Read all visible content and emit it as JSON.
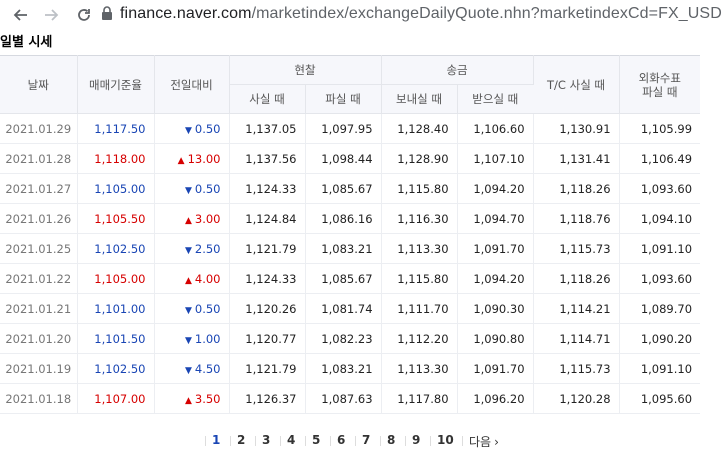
{
  "browser": {
    "url_host": "finance.naver.com",
    "url_path": "/marketindex/exchangeDailyQuote.nhn?marketindexCd=FX_USDKRW"
  },
  "section_title": "일별 시세",
  "table": {
    "headers": {
      "date": "날짜",
      "base_rate": "매매기준율",
      "change": "전일대비",
      "cash_group": "현찰",
      "cash_buy": "사실 때",
      "cash_sell": "파실 때",
      "remit_group": "송금",
      "remit_send": "보내실 때",
      "remit_receive": "받으실 때",
      "tc_buy": "T/C 사실 때",
      "check_sell_line1": "외화수표",
      "check_sell_line2": "파실 때"
    },
    "rows": [
      {
        "date": "2021.01.29",
        "base": "1,117.50",
        "dir": "down",
        "change": "0.50",
        "cash_buy": "1,137.05",
        "cash_sell": "1,097.95",
        "send": "1,128.40",
        "receive": "1,106.60",
        "tc": "1,130.91",
        "check": "1,105.99"
      },
      {
        "date": "2021.01.28",
        "base": "1,118.00",
        "dir": "up",
        "change": "13.00",
        "cash_buy": "1,137.56",
        "cash_sell": "1,098.44",
        "send": "1,128.90",
        "receive": "1,107.10",
        "tc": "1,131.41",
        "check": "1,106.49"
      },
      {
        "date": "2021.01.27",
        "base": "1,105.00",
        "dir": "down",
        "change": "0.50",
        "cash_buy": "1,124.33",
        "cash_sell": "1,085.67",
        "send": "1,115.80",
        "receive": "1,094.20",
        "tc": "1,118.26",
        "check": "1,093.60"
      },
      {
        "date": "2021.01.26",
        "base": "1,105.50",
        "dir": "up",
        "change": "3.00",
        "cash_buy": "1,124.84",
        "cash_sell": "1,086.16",
        "send": "1,116.30",
        "receive": "1,094.70",
        "tc": "1,118.76",
        "check": "1,094.10"
      },
      {
        "date": "2021.01.25",
        "base": "1,102.50",
        "dir": "down",
        "change": "2.50",
        "cash_buy": "1,121.79",
        "cash_sell": "1,083.21",
        "send": "1,113.30",
        "receive": "1,091.70",
        "tc": "1,115.73",
        "check": "1,091.10"
      },
      {
        "date": "2021.01.22",
        "base": "1,105.00",
        "dir": "up",
        "change": "4.00",
        "cash_buy": "1,124.33",
        "cash_sell": "1,085.67",
        "send": "1,115.80",
        "receive": "1,094.20",
        "tc": "1,118.26",
        "check": "1,093.60"
      },
      {
        "date": "2021.01.21",
        "base": "1,101.00",
        "dir": "down",
        "change": "0.50",
        "cash_buy": "1,120.26",
        "cash_sell": "1,081.74",
        "send": "1,111.70",
        "receive": "1,090.30",
        "tc": "1,114.21",
        "check": "1,089.70"
      },
      {
        "date": "2021.01.20",
        "base": "1,101.50",
        "dir": "down",
        "change": "1.00",
        "cash_buy": "1,120.77",
        "cash_sell": "1,082.23",
        "send": "1,112.20",
        "receive": "1,090.80",
        "tc": "1,114.71",
        "check": "1,090.20"
      },
      {
        "date": "2021.01.19",
        "base": "1,102.50",
        "dir": "down",
        "change": "4.50",
        "cash_buy": "1,121.79",
        "cash_sell": "1,083.21",
        "send": "1,113.30",
        "receive": "1,091.70",
        "tc": "1,115.73",
        "check": "1,091.10"
      },
      {
        "date": "2021.01.18",
        "base": "1,107.00",
        "dir": "up",
        "change": "3.50",
        "cash_buy": "1,126.37",
        "cash_sell": "1,087.63",
        "send": "1,117.80",
        "receive": "1,096.20",
        "tc": "1,120.28",
        "check": "1,095.60"
      }
    ]
  },
  "pagination": {
    "pages": [
      "1",
      "2",
      "3",
      "4",
      "5",
      "6",
      "7",
      "8",
      "9",
      "10"
    ],
    "current": "1",
    "next_label": "다음",
    "next_arrow": "›"
  },
  "colors": {
    "up": "#d60000",
    "down": "#1945b4",
    "header_bg": "#f6f7fb"
  },
  "icons": {
    "back": "back-arrow-icon",
    "forward": "forward-arrow-icon",
    "reload": "reload-icon",
    "lock": "lock-icon",
    "up": "▲",
    "down": "▼"
  }
}
